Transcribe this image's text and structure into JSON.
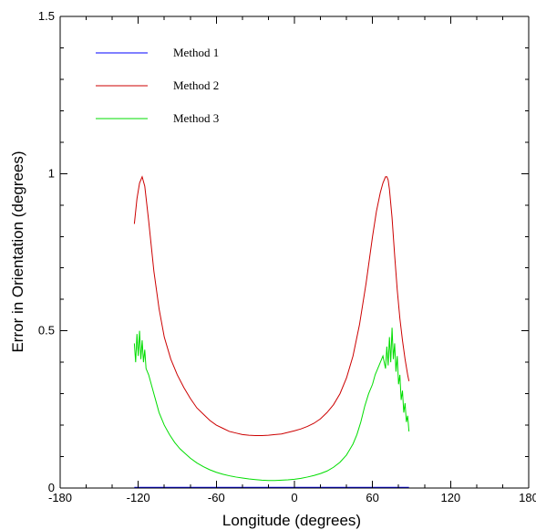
{
  "chart_data": {
    "type": "line",
    "title": "",
    "xlabel": "Longitude (degrees)",
    "ylabel": "Error in Orientation (degrees)",
    "xlim": [
      -180,
      180
    ],
    "ylim": [
      0,
      1.5
    ],
    "x_ticks": [
      -180,
      -120,
      -60,
      0,
      60,
      120,
      180
    ],
    "x_tick_labels": [
      "-180",
      "-120",
      "-60",
      "0",
      "60",
      "120",
      "180"
    ],
    "y_ticks": [
      0,
      0.5,
      1,
      1.5
    ],
    "y_tick_labels": [
      "0",
      "0.5",
      "1",
      "1.5"
    ],
    "grid": false,
    "legend_position": "top-left",
    "series": [
      {
        "name": "Method 1",
        "color": "#0000ff",
        "x": [
          -123,
          -100,
          -80,
          -60,
          -40,
          -20,
          0,
          20,
          40,
          60,
          80,
          88
        ],
        "y": [
          0.002,
          0.002,
          0.002,
          0.002,
          0.002,
          0.002,
          0.002,
          0.002,
          0.002,
          0.002,
          0.002,
          0.002
        ]
      },
      {
        "name": "Method 2",
        "color": "#cc0000",
        "x": [
          -123,
          -121,
          -119,
          -117,
          -115,
          -112,
          -108,
          -104,
          -100,
          -95,
          -90,
          -85,
          -80,
          -75,
          -70,
          -65,
          -60,
          -55,
          -50,
          -45,
          -40,
          -35,
          -30,
          -25,
          -20,
          -15,
          -10,
          -5,
          0,
          5,
          10,
          15,
          20,
          25,
          30,
          35,
          40,
          45,
          50,
          55,
          60,
          63,
          66,
          68,
          70,
          71,
          72,
          73,
          75,
          77,
          79,
          81,
          83,
          85,
          87,
          88
        ],
        "y": [
          0.84,
          0.92,
          0.97,
          0.99,
          0.96,
          0.85,
          0.69,
          0.57,
          0.48,
          0.41,
          0.36,
          0.32,
          0.285,
          0.255,
          0.235,
          0.215,
          0.2,
          0.19,
          0.18,
          0.175,
          0.17,
          0.168,
          0.167,
          0.167,
          0.168,
          0.17,
          0.172,
          0.177,
          0.182,
          0.188,
          0.196,
          0.206,
          0.22,
          0.24,
          0.265,
          0.3,
          0.35,
          0.42,
          0.52,
          0.65,
          0.8,
          0.88,
          0.94,
          0.97,
          0.99,
          0.99,
          0.98,
          0.95,
          0.86,
          0.74,
          0.63,
          0.54,
          0.47,
          0.41,
          0.36,
          0.34
        ]
      },
      {
        "name": "Method 3",
        "color": "#00dd00",
        "x": [
          -123,
          -122,
          -121,
          -120,
          -119,
          -118,
          -117,
          -116,
          -115,
          -114,
          -112,
          -110,
          -108,
          -106,
          -104,
          -102,
          -100,
          -96,
          -92,
          -88,
          -84,
          -80,
          -75,
          -70,
          -65,
          -60,
          -55,
          -50,
          -45,
          -40,
          -35,
          -30,
          -25,
          -20,
          -15,
          -10,
          -5,
          0,
          5,
          10,
          15,
          20,
          25,
          30,
          35,
          40,
          45,
          48,
          51,
          54,
          57,
          60,
          62,
          64,
          66,
          68,
          70,
          71,
          72,
          73,
          74,
          75,
          76,
          77,
          78,
          79,
          80,
          81,
          82,
          83,
          84,
          85,
          86,
          87,
          88
        ],
        "y": [
          0.46,
          0.4,
          0.49,
          0.42,
          0.5,
          0.41,
          0.47,
          0.4,
          0.44,
          0.38,
          0.36,
          0.33,
          0.3,
          0.27,
          0.24,
          0.22,
          0.2,
          0.17,
          0.145,
          0.125,
          0.11,
          0.095,
          0.08,
          0.068,
          0.058,
          0.05,
          0.044,
          0.039,
          0.035,
          0.032,
          0.029,
          0.027,
          0.025,
          0.024,
          0.024,
          0.025,
          0.026,
          0.028,
          0.031,
          0.035,
          0.04,
          0.046,
          0.054,
          0.066,
          0.082,
          0.105,
          0.14,
          0.17,
          0.21,
          0.26,
          0.3,
          0.33,
          0.36,
          0.38,
          0.4,
          0.42,
          0.38,
          0.45,
          0.39,
          0.48,
          0.4,
          0.51,
          0.41,
          0.46,
          0.37,
          0.42,
          0.33,
          0.36,
          0.28,
          0.31,
          0.24,
          0.27,
          0.21,
          0.23,
          0.18
        ]
      }
    ]
  }
}
